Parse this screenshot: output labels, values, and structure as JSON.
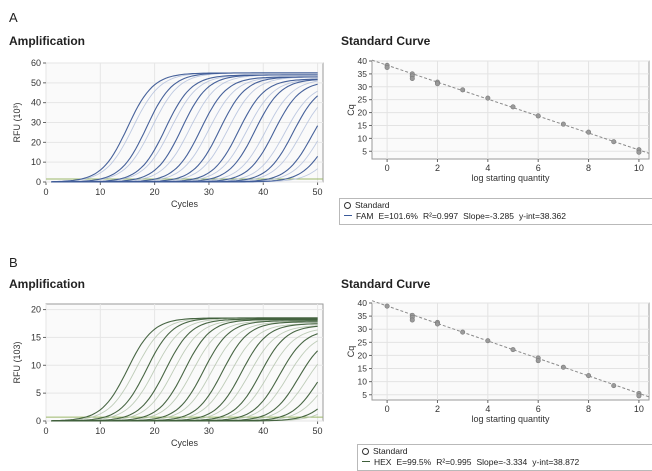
{
  "panels": [
    {
      "letter": "A",
      "amp_title": "Amplification",
      "std_title": "Standard Curve",
      "legend": {
        "standard_label": "Standard",
        "dye": "FAM",
        "efficiency": "E=101.6%",
        "r2": "R²=0.997",
        "slope": "Slope=-3.285",
        "yint": "y-int=38.362"
      },
      "colors": {
        "curve_dark": "#3d5a96",
        "curve_light": "#b3c0dc",
        "fit_line": "#8a8a8a"
      }
    },
    {
      "letter": "B",
      "amp_title": "Amplification",
      "std_title": "Standard Curve",
      "legend": {
        "standard_label": "Standard",
        "dye": "HEX",
        "efficiency": "E=99.5%",
        "r2": "R²=0.995",
        "slope": "Slope=-3.334",
        "yint": "y-int=38.872"
      },
      "colors": {
        "curve_dark": "#3e5e3a",
        "curve_light": "#b4c4ad",
        "fit_line": "#8a8a8a"
      }
    }
  ],
  "chart_data": [
    {
      "type": "line",
      "panel": "A",
      "title": "Amplification",
      "xlabel": "Cycles",
      "ylabel": "RFU (10³)",
      "xlim": [
        0,
        51
      ],
      "ylim": [
        0,
        60
      ],
      "xticks": [
        0,
        10,
        20,
        30,
        40,
        50
      ],
      "yticks": [
        0,
        10,
        20,
        30,
        40,
        50,
        60
      ],
      "grid": true,
      "series": [
        {
          "ct": 7,
          "plateau": 55,
          "k": 0.42,
          "dark": true
        },
        {
          "ct": 10.5,
          "plateau": 55,
          "k": 0.42,
          "dark": true
        },
        {
          "ct": 14,
          "plateau": 54,
          "k": 0.42,
          "dark": true
        },
        {
          "ct": 17,
          "plateau": 54,
          "k": 0.42,
          "dark": true
        },
        {
          "ct": 20.5,
          "plateau": 53,
          "k": 0.42,
          "dark": true
        },
        {
          "ct": 24,
          "plateau": 53,
          "k": 0.42,
          "dark": true
        },
        {
          "ct": 27.5,
          "plateau": 52,
          "k": 0.42,
          "dark": true
        },
        {
          "ct": 30.5,
          "plateau": 52,
          "k": 0.42,
          "dark": true
        },
        {
          "ct": 34,
          "plateau": 51,
          "k": 0.42,
          "dark": true
        },
        {
          "ct": 37.5,
          "plateau": 50,
          "k": 0.42,
          "dark": true
        },
        {
          "ct": 41,
          "plateau": 47,
          "k": 0.42,
          "dark": true
        },
        {
          "ct": 44,
          "plateau": 43,
          "k": 0.42,
          "dark": true
        },
        {
          "ct": 8,
          "plateau": 55,
          "k": 0.4,
          "dark": false
        },
        {
          "ct": 11.5,
          "plateau": 55,
          "k": 0.4,
          "dark": false
        },
        {
          "ct": 15,
          "plateau": 54,
          "k": 0.4,
          "dark": false
        },
        {
          "ct": 18.5,
          "plateau": 54,
          "k": 0.4,
          "dark": false
        },
        {
          "ct": 22,
          "plateau": 53,
          "k": 0.4,
          "dark": false
        },
        {
          "ct": 25.5,
          "plateau": 53,
          "k": 0.4,
          "dark": false
        },
        {
          "ct": 29,
          "plateau": 52,
          "k": 0.4,
          "dark": false
        },
        {
          "ct": 32.5,
          "plateau": 52,
          "k": 0.4,
          "dark": false
        },
        {
          "ct": 36,
          "plateau": 50,
          "k": 0.4,
          "dark": false
        },
        {
          "ct": 39,
          "plateau": 49,
          "k": 0.4,
          "dark": false
        },
        {
          "ct": 42.5,
          "plateau": 46,
          "k": 0.4,
          "dark": false
        },
        {
          "ct": 46,
          "plateau": 40,
          "k": 0.4,
          "dark": false
        }
      ],
      "threshold": 1.5
    },
    {
      "type": "scatter",
      "panel": "A",
      "title": "Standard Curve",
      "xlabel": "log starting quantity",
      "ylabel": "Cq",
      "xlim": [
        -0.6,
        10.4
      ],
      "ylim": [
        2,
        40
      ],
      "xticks": [
        0,
        2,
        4,
        6,
        8,
        10
      ],
      "yticks": [
        5,
        10,
        15,
        20,
        25,
        30,
        35,
        40
      ],
      "grid": true,
      "points": [
        [
          0,
          38.3
        ],
        [
          0,
          37.5
        ],
        [
          1,
          35.0
        ],
        [
          1,
          34.2
        ],
        [
          1,
          33.2
        ],
        [
          2,
          31.8
        ],
        [
          2,
          31.2
        ],
        [
          3,
          28.8
        ],
        [
          4,
          25.6
        ],
        [
          5,
          22.2
        ],
        [
          6,
          18.7
        ],
        [
          7,
          15.5
        ],
        [
          8,
          12.4
        ],
        [
          9,
          8.7
        ],
        [
          10,
          5.6
        ],
        [
          10,
          4.6
        ]
      ],
      "fit": {
        "slope": -3.285,
        "intercept": 38.362
      }
    },
    {
      "type": "line",
      "panel": "B",
      "title": "Amplification",
      "xlabel": "Cycles",
      "ylabel": "RFU (103)",
      "xlim": [
        0,
        51
      ],
      "ylim": [
        0,
        21
      ],
      "xticks": [
        0,
        10,
        20,
        30,
        40,
        50
      ],
      "yticks": [
        0,
        5,
        10,
        15,
        20
      ],
      "grid": true,
      "series": [
        {
          "ct": 7,
          "plateau": 18.5,
          "k": 0.42,
          "dark": true
        },
        {
          "ct": 10.5,
          "plateau": 18.5,
          "k": 0.42,
          "dark": true
        },
        {
          "ct": 14,
          "plateau": 18.3,
          "k": 0.42,
          "dark": true
        },
        {
          "ct": 17.5,
          "plateau": 18.2,
          "k": 0.42,
          "dark": true
        },
        {
          "ct": 21,
          "plateau": 18.0,
          "k": 0.42,
          "dark": true
        },
        {
          "ct": 24.5,
          "plateau": 17.8,
          "k": 0.42,
          "dark": true
        },
        {
          "ct": 28,
          "plateau": 17.5,
          "k": 0.42,
          "dark": true
        },
        {
          "ct": 31.5,
          "plateau": 17.2,
          "k": 0.42,
          "dark": true
        },
        {
          "ct": 35,
          "plateau": 16.5,
          "k": 0.42,
          "dark": true
        },
        {
          "ct": 38.5,
          "plateau": 15.5,
          "k": 0.42,
          "dark": true
        },
        {
          "ct": 42,
          "plateau": 14.0,
          "k": 0.42,
          "dark": true
        },
        {
          "ct": 45.5,
          "plateau": 11.5,
          "k": 0.42,
          "dark": true
        },
        {
          "ct": 8.5,
          "plateau": 18.5,
          "k": 0.4,
          "dark": false
        },
        {
          "ct": 12,
          "plateau": 18.4,
          "k": 0.4,
          "dark": false
        },
        {
          "ct": 15.5,
          "plateau": 18.2,
          "k": 0.4,
          "dark": false
        },
        {
          "ct": 19,
          "plateau": 18.0,
          "k": 0.4,
          "dark": false
        },
        {
          "ct": 22.5,
          "plateau": 17.8,
          "k": 0.4,
          "dark": false
        },
        {
          "ct": 26,
          "plateau": 17.5,
          "k": 0.4,
          "dark": false
        },
        {
          "ct": 29.5,
          "plateau": 17.2,
          "k": 0.4,
          "dark": false
        },
        {
          "ct": 33,
          "plateau": 16.8,
          "k": 0.4,
          "dark": false
        },
        {
          "ct": 36.5,
          "plateau": 16.0,
          "k": 0.4,
          "dark": false
        },
        {
          "ct": 40,
          "plateau": 14.8,
          "k": 0.4,
          "dark": false
        },
        {
          "ct": 43.5,
          "plateau": 13.0,
          "k": 0.4,
          "dark": false
        },
        {
          "ct": 47,
          "plateau": 10.0,
          "k": 0.4,
          "dark": false
        }
      ],
      "threshold": 0.7
    },
    {
      "type": "scatter",
      "panel": "B",
      "title": "Standard Curve",
      "xlabel": "log starting quantity",
      "ylabel": "Cq",
      "xlim": [
        -0.6,
        10.4
      ],
      "ylim": [
        3,
        40
      ],
      "xticks": [
        0,
        2,
        4,
        6,
        8,
        10
      ],
      "yticks": [
        5,
        10,
        15,
        20,
        25,
        30,
        35,
        40
      ],
      "grid": true,
      "points": [
        [
          0,
          38.8
        ],
        [
          1,
          35.3
        ],
        [
          1,
          34.5
        ],
        [
          1,
          33.5
        ],
        [
          2,
          32.6
        ],
        [
          2,
          32.0
        ],
        [
          3,
          28.9
        ],
        [
          4,
          25.6
        ],
        [
          5,
          22.2
        ],
        [
          6,
          19.0
        ],
        [
          6,
          18.0
        ],
        [
          7,
          15.5
        ],
        [
          8,
          12.3
        ],
        [
          9,
          8.5
        ],
        [
          10,
          5.5
        ],
        [
          10,
          4.6
        ]
      ],
      "fit": {
        "slope": -3.334,
        "intercept": 38.872
      }
    }
  ]
}
